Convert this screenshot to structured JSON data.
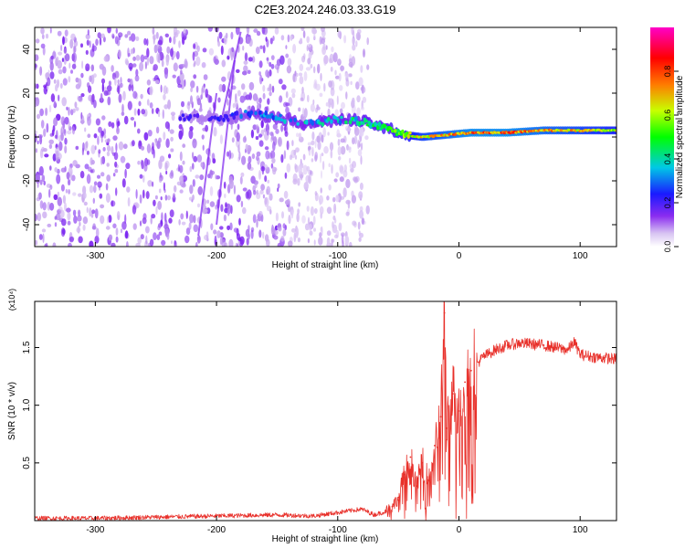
{
  "title": "C2E3.2024.246.03.33.G19",
  "chart_data": [
    {
      "type": "heatmap",
      "xlabel": "Height of straight line (km)",
      "ylabel": "Frequency (Hz)",
      "xlim": [
        -350,
        130
      ],
      "ylim": [
        -50,
        50
      ],
      "xticks": [
        -300,
        -200,
        -100,
        0,
        100
      ],
      "yticks": [
        -40,
        -20,
        0,
        20,
        40
      ],
      "colorbar": {
        "label": "Normalized spectral amplitude",
        "range": [
          0,
          1
        ],
        "ticks": [
          "0.0",
          "0.2",
          "0.4",
          "0.6",
          "0.8"
        ],
        "tick_values": [
          0.0,
          0.2,
          0.4,
          0.6,
          0.8
        ],
        "colors": [
          "#ffffff",
          "#c9a9ef",
          "#7a1ff0",
          "#1a1aff",
          "#00c8e6",
          "#00ff00",
          "#c8ff00",
          "#ff7a00",
          "#ff0000",
          "#ff00c8"
        ]
      },
      "noise_region_km": [
        -350,
        -75
      ],
      "signal_track": [
        {
          "x": -230,
          "freq": 9,
          "amp": 0.3
        },
        {
          "x": -190,
          "freq": 9,
          "amp": 0.35
        },
        {
          "x": -170,
          "freq": 11,
          "amp": 0.45
        },
        {
          "x": -150,
          "freq": 9,
          "amp": 0.45
        },
        {
          "x": -125,
          "freq": 6,
          "amp": 0.5
        },
        {
          "x": -100,
          "freq": 8,
          "amp": 0.5
        },
        {
          "x": -80,
          "freq": 7,
          "amp": 0.55
        },
        {
          "x": -60,
          "freq": 4,
          "amp": 0.6
        },
        {
          "x": -45,
          "freq": 1,
          "amp": 0.7
        },
        {
          "x": -30,
          "freq": 0,
          "amp": 0.8
        },
        {
          "x": -10,
          "freq": 1,
          "amp": 0.85
        },
        {
          "x": 10,
          "freq": 2,
          "amp": 0.9
        },
        {
          "x": 40,
          "freq": 2,
          "amp": 0.9
        },
        {
          "x": 70,
          "freq": 3,
          "amp": 0.85
        },
        {
          "x": 100,
          "freq": 3,
          "amp": 0.8
        },
        {
          "x": 130,
          "freq": 3,
          "amp": 0.75
        }
      ]
    },
    {
      "type": "line",
      "xlabel": "Height of straight line (km)",
      "ylabel": "SNR (10 * v/v)",
      "exponent_label": "(x10⁴)",
      "xlim": [
        -350,
        130
      ],
      "ylim": [
        0,
        1.9
      ],
      "xticks": [
        -300,
        -200,
        -100,
        0,
        100
      ],
      "yticks": [
        0.5,
        1.0,
        1.5
      ],
      "ytick_labels": [
        "0.5",
        "1.0",
        "1.5"
      ],
      "color": "#e8302a",
      "series": [
        {
          "name": "SNR",
          "x": [
            -350,
            -300,
            -250,
            -200,
            -150,
            -120,
            -100,
            -80,
            -70,
            -60,
            -55,
            -50,
            -45,
            -40,
            -35,
            -30,
            -25,
            -20,
            -15,
            -12,
            -10,
            -5,
            0,
            5,
            10,
            20,
            30,
            40,
            50,
            60,
            70,
            80,
            90,
            95,
            100,
            110,
            120,
            130
          ],
          "y": [
            0.02,
            0.02,
            0.03,
            0.04,
            0.05,
            0.04,
            0.07,
            0.1,
            0.05,
            0.08,
            0.12,
            0.2,
            0.4,
            0.55,
            0.3,
            0.5,
            0.35,
            0.65,
            0.9,
            1.8,
            0.8,
            1.1,
            0.95,
            1.2,
            1.3,
            1.42,
            1.48,
            1.52,
            1.54,
            1.53,
            1.52,
            1.5,
            1.48,
            1.55,
            1.44,
            1.42,
            1.41,
            1.4
          ]
        }
      ]
    }
  ]
}
